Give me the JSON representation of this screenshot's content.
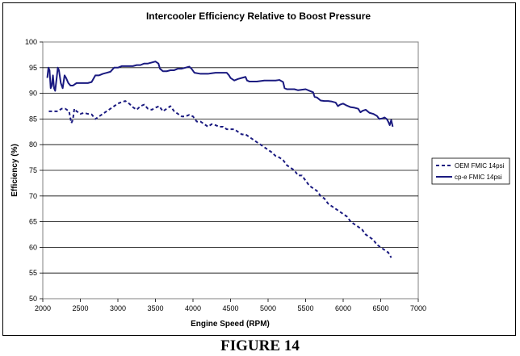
{
  "chart_data": {
    "type": "line",
    "title": "Intercooler Efficiency Relative to Boost Pressure",
    "xlabel": "Engine Speed (RPM)",
    "ylabel": "Efficiency (%)",
    "xlim": [
      2000,
      7000
    ],
    "ylim": [
      50,
      100
    ],
    "xticks": [
      2000,
      2500,
      3000,
      3500,
      4000,
      4500,
      5000,
      5500,
      6000,
      6500,
      7000
    ],
    "yticks": [
      50,
      55,
      60,
      65,
      70,
      75,
      80,
      85,
      90,
      95,
      100
    ],
    "grid": "horizontal major",
    "legend_position": "right",
    "series": [
      {
        "name": "OEM FMIC 14psi",
        "color": "#1a1a80",
        "style": "dashed",
        "points": [
          [
            2080,
            86.5
          ],
          [
            2150,
            86.5
          ],
          [
            2200,
            86.5
          ],
          [
            2250,
            87
          ],
          [
            2300,
            87
          ],
          [
            2350,
            86.5
          ],
          [
            2380,
            84.2
          ],
          [
            2400,
            84.8
          ],
          [
            2420,
            87
          ],
          [
            2450,
            86.5
          ],
          [
            2500,
            86
          ],
          [
            2550,
            86.2
          ],
          [
            2600,
            86
          ],
          [
            2650,
            85.9
          ],
          [
            2700,
            85
          ],
          [
            2750,
            85.5
          ],
          [
            2800,
            86
          ],
          [
            2850,
            86.5
          ],
          [
            2900,
            87
          ],
          [
            2950,
            87.5
          ],
          [
            3000,
            88
          ],
          [
            3050,
            88.3
          ],
          [
            3100,
            88.5
          ],
          [
            3150,
            88
          ],
          [
            3200,
            87.3
          ],
          [
            3250,
            86.8
          ],
          [
            3300,
            87.5
          ],
          [
            3350,
            87.8
          ],
          [
            3400,
            87
          ],
          [
            3450,
            86.8
          ],
          [
            3500,
            87.2
          ],
          [
            3550,
            87.5
          ],
          [
            3600,
            86.5
          ],
          [
            3650,
            87
          ],
          [
            3700,
            87.5
          ],
          [
            3750,
            86.5
          ],
          [
            3800,
            86
          ],
          [
            3850,
            85.5
          ],
          [
            3900,
            85.5
          ],
          [
            3950,
            85.8
          ],
          [
            4000,
            85.5
          ],
          [
            4050,
            84.5
          ],
          [
            4100,
            84.5
          ],
          [
            4150,
            84
          ],
          [
            4200,
            83.5
          ],
          [
            4250,
            84
          ],
          [
            4300,
            83.8
          ],
          [
            4350,
            83.5
          ],
          [
            4400,
            83.5
          ],
          [
            4450,
            83
          ],
          [
            4500,
            83
          ],
          [
            4550,
            83
          ],
          [
            4600,
            82.5
          ],
          [
            4650,
            82
          ],
          [
            4700,
            82
          ],
          [
            4750,
            81.5
          ],
          [
            4800,
            81
          ],
          [
            4850,
            80.5
          ],
          [
            4900,
            80
          ],
          [
            4950,
            79.5
          ],
          [
            5000,
            79
          ],
          [
            5050,
            78.5
          ],
          [
            5100,
            77.8
          ],
          [
            5150,
            77.5
          ],
          [
            5200,
            77
          ],
          [
            5250,
            76
          ],
          [
            5300,
            75.5
          ],
          [
            5350,
            75
          ],
          [
            5400,
            74
          ],
          [
            5450,
            74
          ],
          [
            5500,
            73
          ],
          [
            5550,
            72
          ],
          [
            5600,
            71.5
          ],
          [
            5650,
            71
          ],
          [
            5700,
            70
          ],
          [
            5750,
            69.5
          ],
          [
            5800,
            68.5
          ],
          [
            5850,
            68
          ],
          [
            5900,
            67.5
          ],
          [
            5950,
            67
          ],
          [
            6000,
            66.5
          ],
          [
            6050,
            66
          ],
          [
            6100,
            65
          ],
          [
            6150,
            64.5
          ],
          [
            6200,
            64
          ],
          [
            6250,
            63.5
          ],
          [
            6300,
            62.5
          ],
          [
            6350,
            62
          ],
          [
            6400,
            61.5
          ],
          [
            6450,
            60.5
          ],
          [
            6500,
            60
          ],
          [
            6550,
            59.5
          ],
          [
            6600,
            59
          ],
          [
            6640,
            58
          ]
        ]
      },
      {
        "name": "cp-e FMIC 14psi",
        "color": "#1a1a80",
        "style": "solid",
        "points": [
          [
            2060,
            93
          ],
          [
            2075,
            95
          ],
          [
            2090,
            94.5
          ],
          [
            2105,
            91
          ],
          [
            2120,
            91.5
          ],
          [
            2135,
            93.5
          ],
          [
            2150,
            91
          ],
          [
            2165,
            90.5
          ],
          [
            2185,
            93
          ],
          [
            2200,
            95
          ],
          [
            2215,
            94.5
          ],
          [
            2240,
            92
          ],
          [
            2265,
            91
          ],
          [
            2290,
            93.5
          ],
          [
            2310,
            93
          ],
          [
            2340,
            92
          ],
          [
            2370,
            91.5
          ],
          [
            2400,
            91.5
          ],
          [
            2450,
            92
          ],
          [
            2500,
            92
          ],
          [
            2550,
            92
          ],
          [
            2600,
            92
          ],
          [
            2650,
            92.2
          ],
          [
            2700,
            93.5
          ],
          [
            2750,
            93.5
          ],
          [
            2800,
            93.8
          ],
          [
            2850,
            94
          ],
          [
            2900,
            94.2
          ],
          [
            2950,
            95
          ],
          [
            3000,
            95
          ],
          [
            3050,
            95.3
          ],
          [
            3100,
            95.3
          ],
          [
            3150,
            95.3
          ],
          [
            3200,
            95.3
          ],
          [
            3250,
            95.5
          ],
          [
            3300,
            95.5
          ],
          [
            3350,
            95.8
          ],
          [
            3400,
            95.8
          ],
          [
            3450,
            96
          ],
          [
            3500,
            96.2
          ],
          [
            3540,
            95.8
          ],
          [
            3560,
            94.8
          ],
          [
            3600,
            94.3
          ],
          [
            3650,
            94.3
          ],
          [
            3700,
            94.5
          ],
          [
            3750,
            94.5
          ],
          [
            3800,
            94.8
          ],
          [
            3850,
            94.8
          ],
          [
            3900,
            95
          ],
          [
            3950,
            95.2
          ],
          [
            3980,
            94.8
          ],
          [
            4020,
            94
          ],
          [
            4100,
            93.8
          ],
          [
            4150,
            93.8
          ],
          [
            4200,
            93.8
          ],
          [
            4250,
            93.9
          ],
          [
            4300,
            94
          ],
          [
            4350,
            94
          ],
          [
            4400,
            94
          ],
          [
            4450,
            94
          ],
          [
            4480,
            93.5
          ],
          [
            4500,
            93
          ],
          [
            4550,
            92.5
          ],
          [
            4600,
            92.8
          ],
          [
            4650,
            93
          ],
          [
            4700,
            93.2
          ],
          [
            4720,
            92.5
          ],
          [
            4750,
            92.3
          ],
          [
            4800,
            92.3
          ],
          [
            4850,
            92.3
          ],
          [
            4900,
            92.4
          ],
          [
            4950,
            92.5
          ],
          [
            5000,
            92.5
          ],
          [
            5050,
            92.5
          ],
          [
            5100,
            92.5
          ],
          [
            5150,
            92.6
          ],
          [
            5200,
            92.2
          ],
          [
            5220,
            91
          ],
          [
            5250,
            90.8
          ],
          [
            5300,
            90.8
          ],
          [
            5350,
            90.8
          ],
          [
            5400,
            90.6
          ],
          [
            5450,
            90.7
          ],
          [
            5500,
            90.8
          ],
          [
            5550,
            90.5
          ],
          [
            5600,
            90.2
          ],
          [
            5620,
            89.3
          ],
          [
            5650,
            89.2
          ],
          [
            5700,
            88.6
          ],
          [
            5750,
            88.5
          ],
          [
            5800,
            88.5
          ],
          [
            5850,
            88.4
          ],
          [
            5900,
            88.2
          ],
          [
            5930,
            87.5
          ],
          [
            5960,
            87.8
          ],
          [
            6000,
            88
          ],
          [
            6050,
            87.6
          ],
          [
            6100,
            87.3
          ],
          [
            6150,
            87.2
          ],
          [
            6200,
            87
          ],
          [
            6230,
            86.3
          ],
          [
            6260,
            86.6
          ],
          [
            6300,
            86.8
          ],
          [
            6350,
            86.2
          ],
          [
            6400,
            86
          ],
          [
            6450,
            85.6
          ],
          [
            6480,
            85
          ],
          [
            6520,
            85.1
          ],
          [
            6550,
            85.3
          ],
          [
            6580,
            85
          ],
          [
            6600,
            84.5
          ],
          [
            6620,
            83.8
          ],
          [
            6640,
            84.8
          ],
          [
            6660,
            83.5
          ]
        ]
      }
    ]
  },
  "figure_caption": "FIGURE 14"
}
